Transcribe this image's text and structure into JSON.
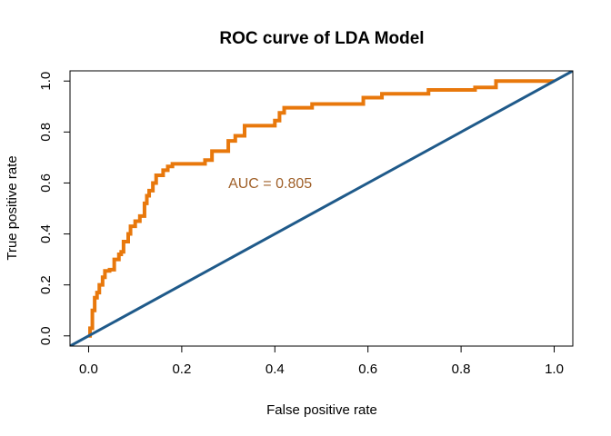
{
  "chart_data": {
    "type": "line",
    "title": "ROC curve of LDA Model",
    "xlabel": "False positive rate",
    "ylabel": "True positive rate",
    "xlim": [
      -0.04,
      1.04
    ],
    "ylim": [
      -0.04,
      1.04
    ],
    "x_ticks": [
      "0.0",
      "0.2",
      "0.4",
      "0.6",
      "0.8",
      "1.0"
    ],
    "y_ticks": [
      "0.0",
      "0.2",
      "0.4",
      "0.6",
      "0.8",
      "1.0"
    ],
    "grid": false,
    "series": [
      {
        "color": "#E8780C",
        "x": [
          0.0,
          0.003,
          0.003,
          0.008,
          0.008,
          0.013,
          0.013,
          0.018,
          0.018,
          0.023,
          0.023,
          0.03,
          0.03,
          0.035,
          0.035,
          0.045,
          0.045,
          0.055,
          0.055,
          0.065,
          0.065,
          0.07,
          0.07,
          0.075,
          0.075,
          0.085,
          0.085,
          0.09,
          0.09,
          0.1,
          0.1,
          0.11,
          0.11,
          0.12,
          0.12,
          0.125,
          0.125,
          0.13,
          0.13,
          0.138,
          0.138,
          0.145,
          0.145,
          0.16,
          0.16,
          0.17,
          0.17,
          0.18,
          0.18,
          0.25,
          0.25,
          0.265,
          0.265,
          0.3,
          0.3,
          0.315,
          0.315,
          0.335,
          0.335,
          0.4,
          0.4,
          0.41,
          0.41,
          0.42,
          0.42,
          0.48,
          0.48,
          0.59,
          0.59,
          0.63,
          0.63,
          0.73,
          0.73,
          0.83,
          0.83,
          0.875,
          0.875,
          1.0
        ],
        "y": [
          0.0,
          0.0,
          0.03,
          0.03,
          0.1,
          0.1,
          0.15,
          0.15,
          0.17,
          0.17,
          0.2,
          0.2,
          0.23,
          0.23,
          0.255,
          0.255,
          0.26,
          0.26,
          0.3,
          0.3,
          0.32,
          0.32,
          0.33,
          0.33,
          0.37,
          0.37,
          0.4,
          0.4,
          0.43,
          0.43,
          0.45,
          0.45,
          0.47,
          0.47,
          0.52,
          0.52,
          0.55,
          0.55,
          0.57,
          0.57,
          0.6,
          0.6,
          0.63,
          0.63,
          0.65,
          0.65,
          0.665,
          0.665,
          0.675,
          0.675,
          0.69,
          0.69,
          0.725,
          0.725,
          0.765,
          0.765,
          0.785,
          0.785,
          0.825,
          0.825,
          0.845,
          0.845,
          0.875,
          0.875,
          0.895,
          0.895,
          0.91,
          0.91,
          0.935,
          0.935,
          0.95,
          0.95,
          0.965,
          0.965,
          0.975,
          0.975,
          1.0,
          1.0
        ]
      },
      {
        "color": "#1F5A8A",
        "x": [
          -0.04,
          1.04
        ],
        "y": [
          -0.04,
          1.04
        ]
      }
    ],
    "annotations": [
      {
        "text": "AUC = 0.805",
        "x": 0.3,
        "y": 0.58,
        "color": "#A0612A"
      }
    ]
  }
}
